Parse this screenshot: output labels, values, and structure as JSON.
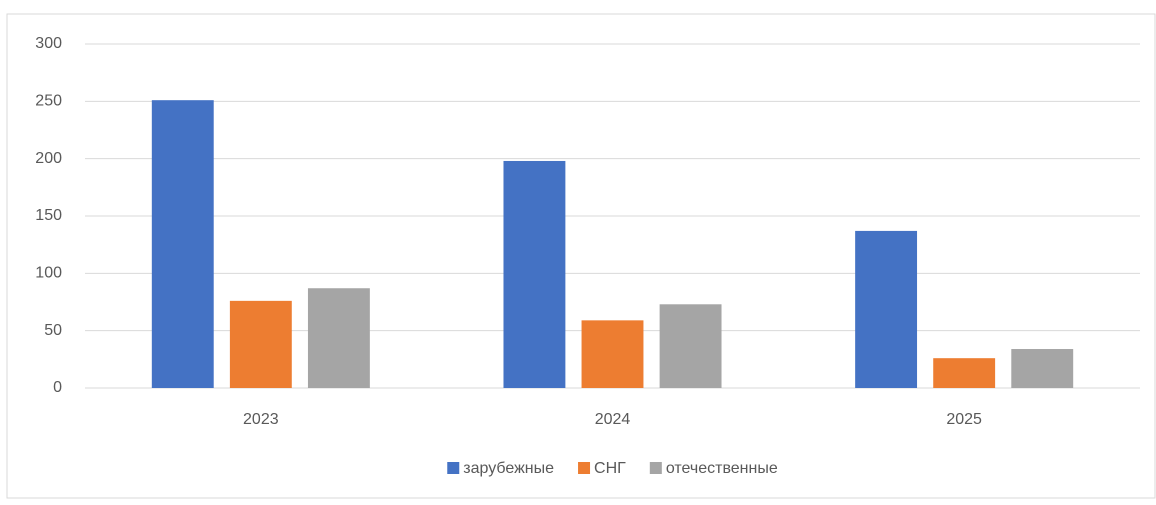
{
  "chart_data": {
    "type": "bar",
    "categories": [
      "2023",
      "2024",
      "2025"
    ],
    "series": [
      {
        "name": "зарубежные",
        "color": "#4472c4",
        "values": [
          251,
          198,
          137
        ]
      },
      {
        "name": "СНГ",
        "color": "#ed7d31",
        "values": [
          76,
          59,
          26
        ]
      },
      {
        "name": "отечественные",
        "color": "#a5a5a5",
        "values": [
          87,
          73,
          34
        ]
      }
    ],
    "ylim": [
      0,
      300
    ],
    "yticks": [
      0,
      50,
      100,
      150,
      200,
      250,
      300
    ],
    "grid": true,
    "legend": "bottom"
  }
}
